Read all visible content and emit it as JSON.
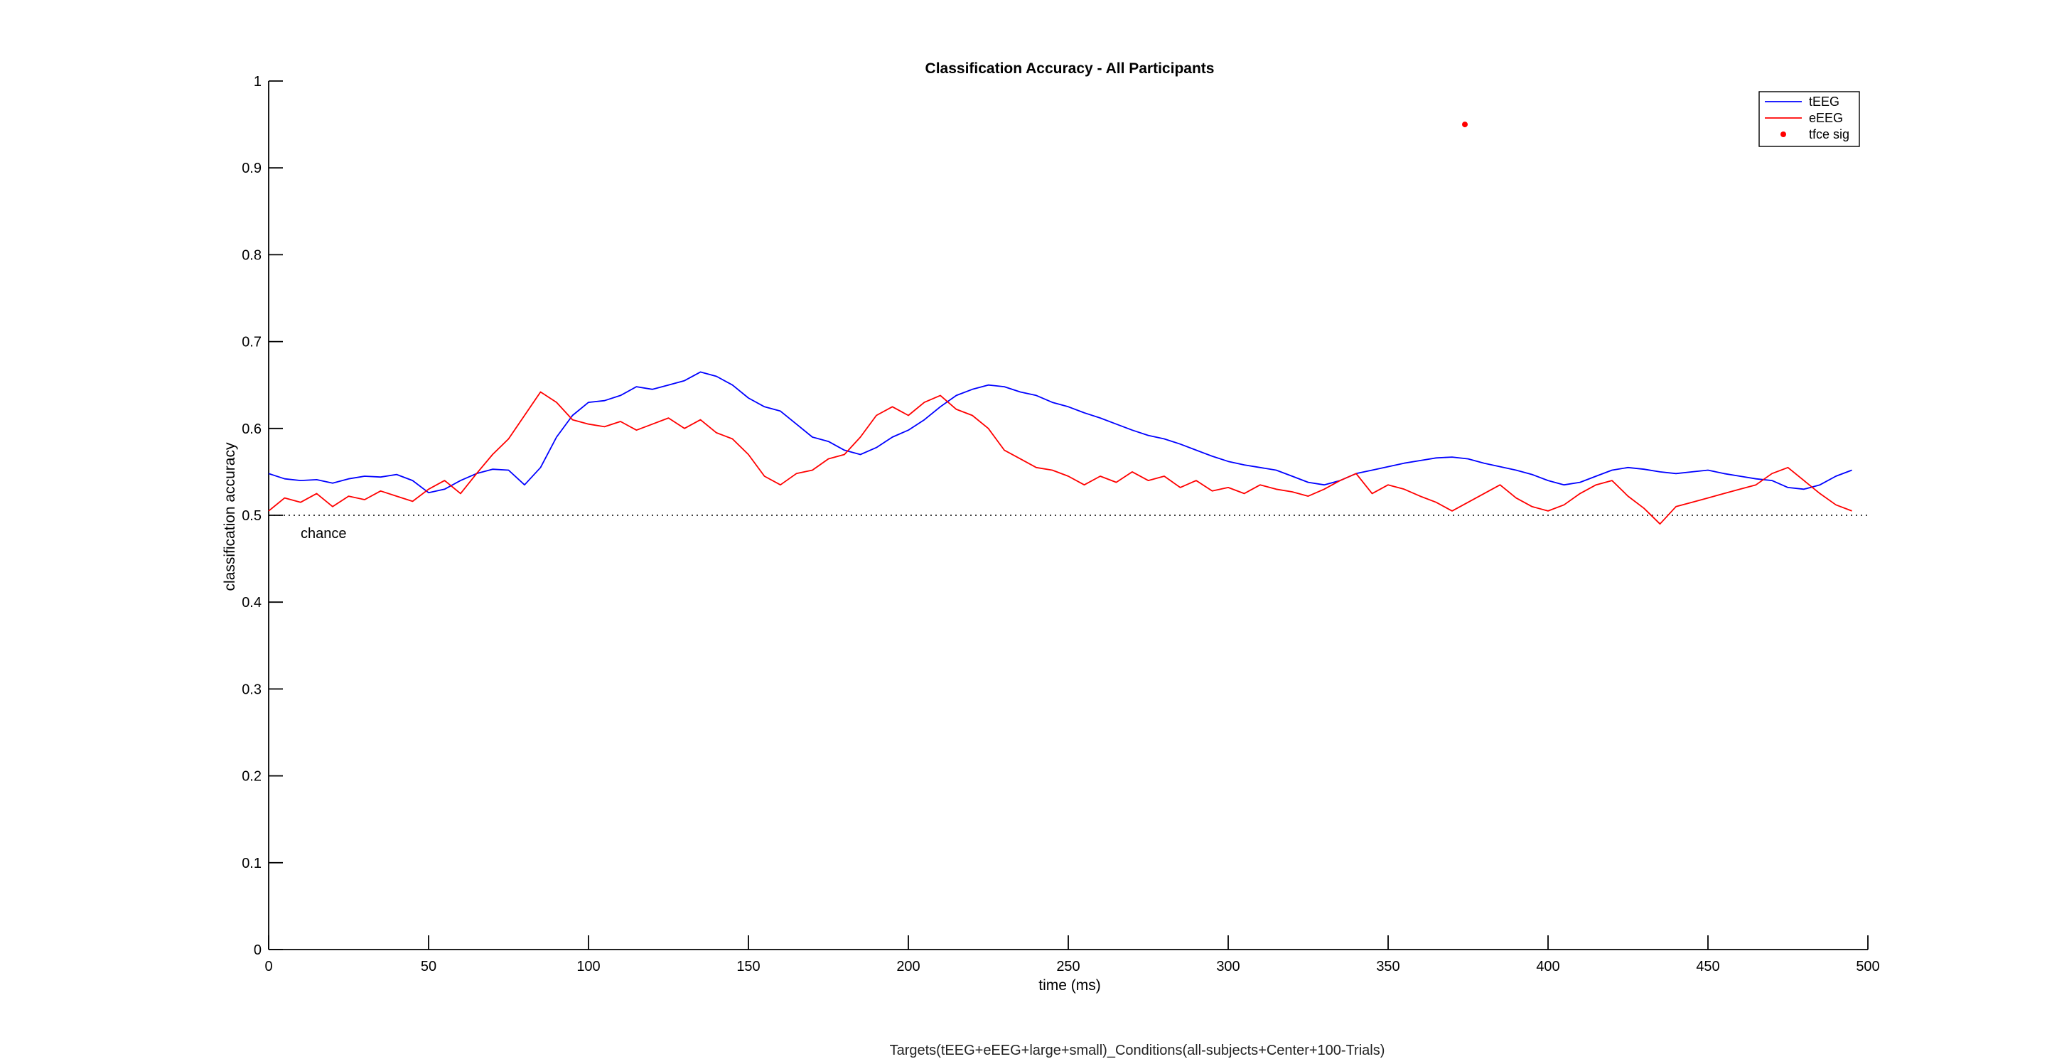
{
  "figure": {
    "footer_caption": "Targets(tEEG+eEEG+large+small)_Conditions(all-subjects+Center+100-Trials)"
  },
  "chart_data": {
    "type": "line",
    "title": "Classification Accuracy - All Participants",
    "xlabel": "time (ms)",
    "ylabel": "classification accuracy",
    "xlim": [
      0,
      500
    ],
    "ylim": [
      0,
      1
    ],
    "xticks": [
      0,
      50,
      100,
      150,
      200,
      250,
      300,
      350,
      400,
      450,
      500
    ],
    "yticks": [
      0,
      0.1,
      0.2,
      0.3,
      0.4,
      0.5,
      0.6,
      0.7,
      0.8,
      0.9,
      1
    ],
    "grid": false,
    "legend_position": "top-right",
    "chance_level": 0.5,
    "chance_label": "chance",
    "series": [
      {
        "name": "tEEG",
        "color": "#0000ff",
        "style": "line",
        "x": [
          0,
          5,
          10,
          15,
          20,
          25,
          30,
          35,
          40,
          45,
          50,
          55,
          60,
          65,
          70,
          75,
          80,
          85,
          90,
          95,
          100,
          105,
          110,
          115,
          120,
          125,
          130,
          135,
          140,
          145,
          150,
          155,
          160,
          165,
          170,
          175,
          180,
          185,
          190,
          195,
          200,
          205,
          210,
          215,
          220,
          225,
          230,
          235,
          240,
          245,
          250,
          255,
          260,
          265,
          270,
          275,
          280,
          285,
          290,
          295,
          300,
          305,
          310,
          315,
          320,
          325,
          330,
          335,
          340,
          345,
          350,
          355,
          360,
          365,
          370,
          375,
          380,
          385,
          390,
          395,
          400,
          405,
          410,
          415,
          420,
          425,
          430,
          435,
          440,
          445,
          450,
          455,
          460,
          465,
          470,
          475,
          480,
          485,
          490,
          495
        ],
        "y": [
          0.548,
          0.542,
          0.54,
          0.541,
          0.537,
          0.542,
          0.545,
          0.544,
          0.547,
          0.54,
          0.526,
          0.53,
          0.54,
          0.548,
          0.553,
          0.552,
          0.535,
          0.555,
          0.59,
          0.615,
          0.63,
          0.632,
          0.638,
          0.648,
          0.645,
          0.65,
          0.655,
          0.665,
          0.66,
          0.65,
          0.635,
          0.625,
          0.62,
          0.605,
          0.59,
          0.585,
          0.575,
          0.57,
          0.578,
          0.59,
          0.598,
          0.61,
          0.625,
          0.638,
          0.645,
          0.65,
          0.648,
          0.642,
          0.638,
          0.63,
          0.625,
          0.618,
          0.612,
          0.605,
          0.598,
          0.592,
          0.588,
          0.582,
          0.575,
          0.568,
          0.562,
          0.558,
          0.555,
          0.552,
          0.545,
          0.538,
          0.535,
          0.54,
          0.548,
          0.552,
          0.556,
          0.56,
          0.563,
          0.566,
          0.567,
          0.565,
          0.56,
          0.556,
          0.552,
          0.547,
          0.54,
          0.535,
          0.538,
          0.545,
          0.552,
          0.555,
          0.553,
          0.55,
          0.548,
          0.55,
          0.552,
          0.548,
          0.545,
          0.542,
          0.54,
          0.532,
          0.53,
          0.535,
          0.545,
          0.552
        ]
      },
      {
        "name": "eEEG",
        "color": "#ff0000",
        "style": "line",
        "x": [
          0,
          5,
          10,
          15,
          20,
          25,
          30,
          35,
          40,
          45,
          50,
          55,
          60,
          65,
          70,
          75,
          80,
          85,
          90,
          95,
          100,
          105,
          110,
          115,
          120,
          125,
          130,
          135,
          140,
          145,
          150,
          155,
          160,
          165,
          170,
          175,
          180,
          185,
          190,
          195,
          200,
          205,
          210,
          215,
          220,
          225,
          230,
          235,
          240,
          245,
          250,
          255,
          260,
          265,
          270,
          275,
          280,
          285,
          290,
          295,
          300,
          305,
          310,
          315,
          320,
          325,
          330,
          335,
          340,
          345,
          350,
          355,
          360,
          365,
          370,
          375,
          380,
          385,
          390,
          395,
          400,
          405,
          410,
          415,
          420,
          425,
          430,
          435,
          440,
          445,
          450,
          455,
          460,
          465,
          470,
          475,
          480,
          485,
          490,
          495
        ],
        "y": [
          0.505,
          0.52,
          0.515,
          0.525,
          0.51,
          0.522,
          0.518,
          0.528,
          0.522,
          0.516,
          0.53,
          0.54,
          0.525,
          0.548,
          0.57,
          0.588,
          0.615,
          0.642,
          0.63,
          0.61,
          0.605,
          0.602,
          0.608,
          0.598,
          0.605,
          0.612,
          0.6,
          0.61,
          0.595,
          0.588,
          0.57,
          0.545,
          0.535,
          0.548,
          0.552,
          0.565,
          0.57,
          0.59,
          0.615,
          0.625,
          0.615,
          0.63,
          0.638,
          0.622,
          0.615,
          0.6,
          0.575,
          0.565,
          0.555,
          0.552,
          0.545,
          0.535,
          0.545,
          0.538,
          0.55,
          0.54,
          0.545,
          0.532,
          0.54,
          0.528,
          0.532,
          0.525,
          0.535,
          0.53,
          0.527,
          0.522,
          0.53,
          0.54,
          0.548,
          0.525,
          0.535,
          0.53,
          0.522,
          0.515,
          0.505,
          0.515,
          0.525,
          0.535,
          0.52,
          0.51,
          0.505,
          0.512,
          0.525,
          0.535,
          0.54,
          0.522,
          0.508,
          0.49,
          0.51,
          0.515,
          0.52,
          0.525,
          0.53,
          0.535,
          0.548,
          0.555,
          0.54,
          0.525,
          0.512,
          0.505
        ]
      },
      {
        "name": "tfce sig",
        "color": "#ff0000",
        "style": "marker",
        "x": [
          374
        ],
        "y": [
          0.95
        ]
      }
    ]
  }
}
